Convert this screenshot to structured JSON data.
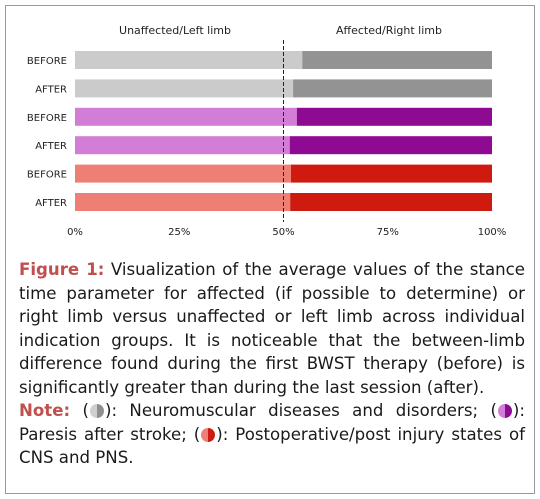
{
  "chart_data": {
    "type": "bar",
    "orientation": "horizontal",
    "stacked": true,
    "header_left": "Unaffected/Left limb",
    "header_right": "Affected/Right limb",
    "categories": [
      "BEFORE",
      "AFTER",
      "BEFORE",
      "AFTER",
      "BEFORE",
      "AFTER"
    ],
    "series": [
      {
        "values": [
          54.5,
          52.3,
          53.2,
          51.5,
          51.8,
          51.6
        ]
      },
      {
        "values": [
          45.5,
          47.7,
          46.8,
          48.5,
          48.2,
          48.4
        ]
      }
    ],
    "groups": [
      {
        "rows": [
          0,
          1
        ],
        "colors": [
          "#cbcbcb",
          "#939393"
        ]
      },
      {
        "rows": [
          2,
          3
        ],
        "colors": [
          "#d27ed6",
          "#8e0a92"
        ]
      },
      {
        "rows": [
          4,
          5
        ],
        "colors": [
          "#ee7f74",
          "#cf1a10"
        ]
      }
    ],
    "x_ticks": [
      "0%",
      "25%",
      "50%",
      "75%",
      "100%"
    ],
    "xlim": [
      0,
      100
    ],
    "reference_line": 50,
    "grid": false
  },
  "caption": {
    "label": "Figure 1:",
    "text": " Visualization of the average values of the stance time parameter for affected (if possible to determine) or right limb versus unaffected or left limb across individual indication groups. It is noticeable that the between-limb difference found during the first BWST therapy (before) is significantly greater than during the last session (after).",
    "note_label": "Note:",
    "note_open_1": " (",
    "note_text_1": "): Neuromuscular diseases and disorders; (",
    "note_text_2": "): Paresis after stroke; (",
    "note_text_3": "): Postoperative/post injury states of CNS and PNS."
  }
}
